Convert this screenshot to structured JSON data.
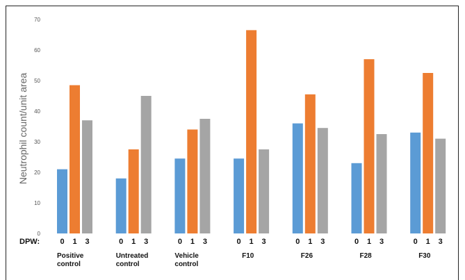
{
  "chart_data": {
    "type": "bar",
    "ylabel": "Neutrophil count/unit area",
    "ylim": [
      0,
      70
    ],
    "yticks": [
      "0",
      "10",
      "20",
      "30",
      "40",
      "50",
      "60",
      "70"
    ],
    "x_prefix": "DPW:",
    "bar_labels": [
      "0",
      "1",
      "3"
    ],
    "categories": [
      [
        "Positive",
        "control"
      ],
      [
        "Untreated",
        "control"
      ],
      [
        "Vehicle",
        "control"
      ],
      [
        "F10"
      ],
      [
        "F26"
      ],
      [
        "F28"
      ],
      [
        "F30"
      ]
    ],
    "series": [
      {
        "color": "#5b9bd5",
        "values": [
          21,
          18,
          24.5,
          24.5,
          36,
          23,
          33
        ]
      },
      {
        "color": "#ed7d31",
        "values": [
          48.5,
          27.5,
          34,
          66.5,
          45.5,
          57,
          52.5
        ]
      },
      {
        "color": "#a5a5a5",
        "values": [
          37,
          45,
          37.5,
          27.5,
          34.5,
          32.5,
          31
        ]
      }
    ],
    "grid": false,
    "legend": "none"
  }
}
